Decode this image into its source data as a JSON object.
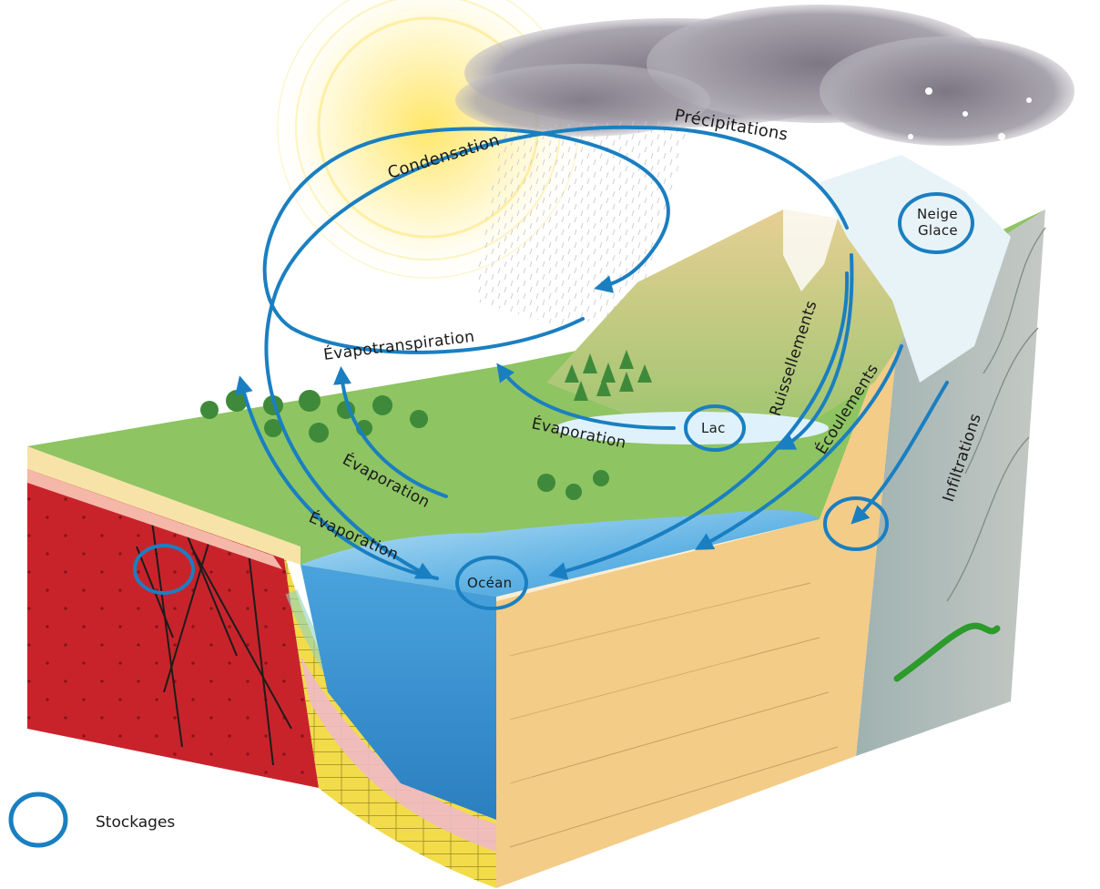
{
  "labels": {
    "condensation": "Condensation",
    "precipitations": "Précipitations",
    "evapotranspiration": "Évapotranspiration",
    "evaporation_lake": "Évaporation",
    "evaporation_land": "Évaporation",
    "evaporation_ocean": "Évaporation",
    "ruissellements": "Ruissellements",
    "ecoulements": "Écoulements",
    "infiltrations": "Infiltrations",
    "lac": "Lac",
    "ocean": "Océan",
    "neige": "Neige",
    "glace": "Glace"
  },
  "legend": {
    "stockages": "Stockages"
  },
  "colors": {
    "flow_arrow": "#1a7fc1",
    "sun": "#fde98a",
    "cloud": "#8f8a95",
    "grass": "#8ec462",
    "ocean": "#3f9bd8",
    "granite": "#c8232b",
    "sediment_yellow": "#f2dc4a",
    "sediment_pink": "#f0b9c8",
    "sandstone": "#f3cc88",
    "schist": "#b9bfbf"
  },
  "icons": {
    "storage_marker": "storage-ring-icon",
    "sun": "sun-icon",
    "cloud": "cloud-icon",
    "tree": "tree-icon"
  }
}
